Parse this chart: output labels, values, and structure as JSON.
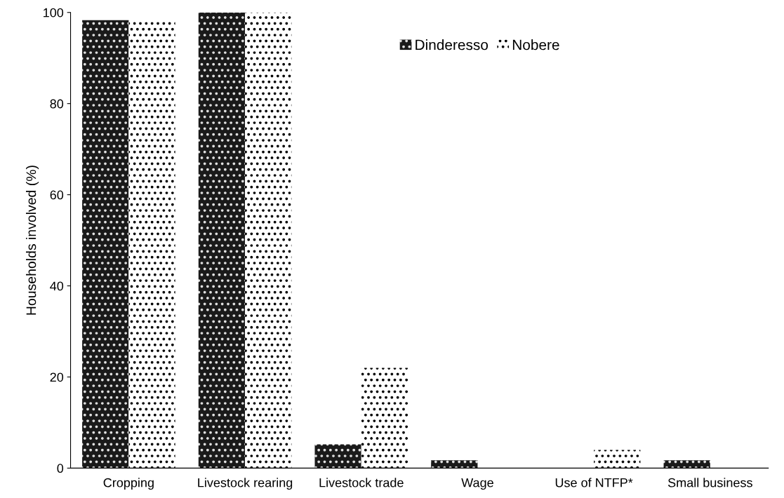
{
  "chart_data": {
    "type": "bar",
    "ylabel": "Households involved (%)",
    "categories": [
      "Cropping",
      "Livestock rearing",
      "Livestock trade",
      "Wage",
      "Use of NTFP*",
      "Small business"
    ],
    "series": [
      {
        "name": "Dinderesso",
        "color": "#1a1a1a",
        "values": [
          98.3,
          100,
          5.2,
          1.7,
          0,
          1.7
        ]
      },
      {
        "name": "Nobere",
        "color": "#ffffff",
        "values": [
          98,
          100,
          22,
          0,
          4,
          0
        ]
      }
    ],
    "ylim": [
      0,
      100
    ],
    "yticks": [
      0,
      20,
      40,
      60,
      80,
      100
    ],
    "grid": false,
    "legend": "top right"
  }
}
